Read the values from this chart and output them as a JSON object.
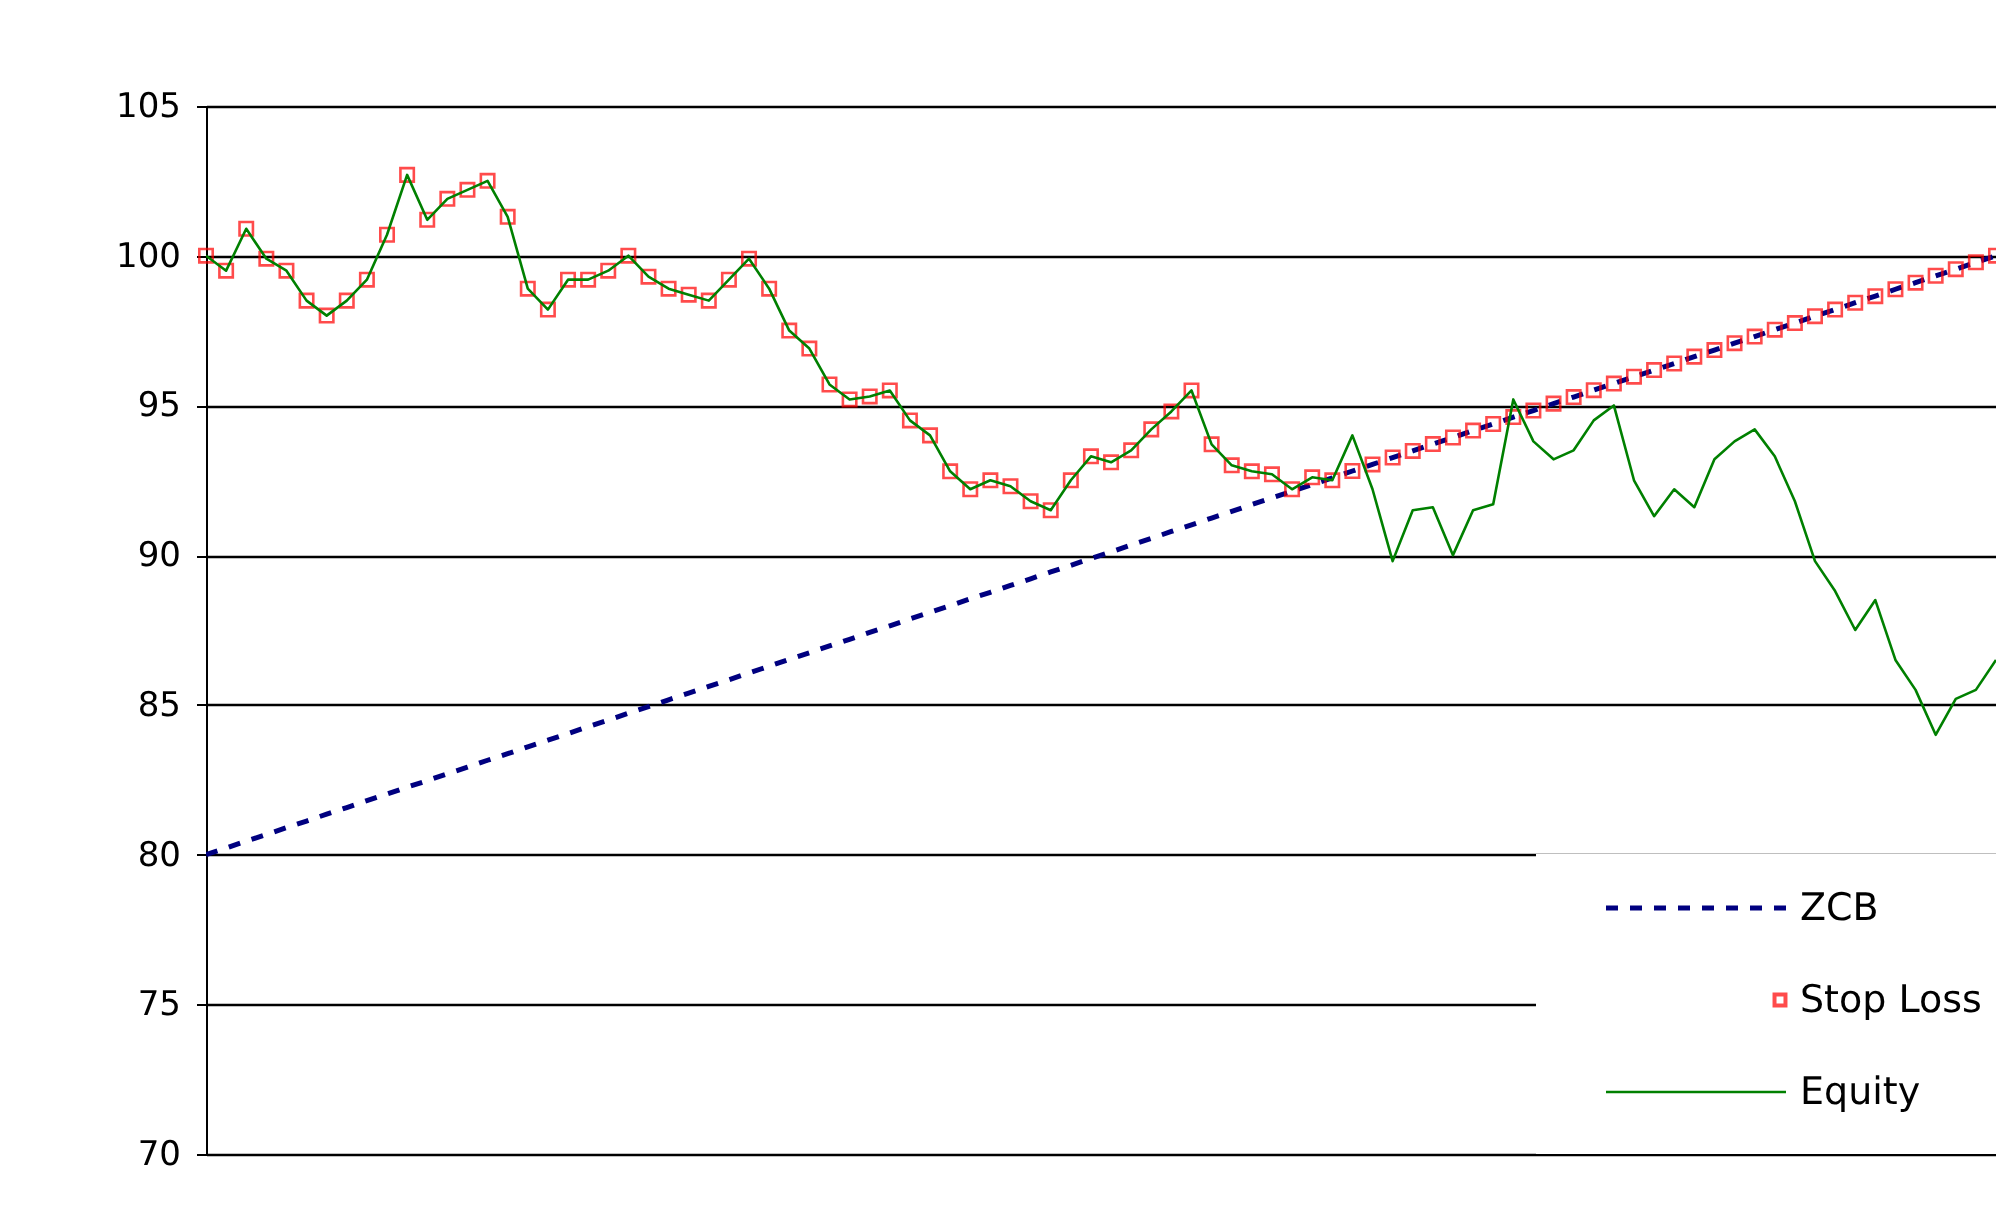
{
  "chart_data": {
    "type": "line",
    "categories": [
      null,
      null,
      null,
      null,
      null,
      null,
      null,
      null,
      null,
      null,
      null,
      null,
      null,
      null,
      null,
      null,
      null,
      null,
      null,
      null,
      null,
      null,
      null,
      null,
      null,
      null,
      null,
      null,
      null,
      null,
      null,
      null,
      null,
      null,
      null,
      null,
      null,
      null,
      null,
      null,
      null,
      null,
      null,
      null,
      null,
      null,
      null,
      null,
      null,
      null,
      null,
      null,
      null,
      null,
      null,
      null,
      null,
      null,
      null,
      null,
      null,
      null,
      null,
      null,
      null,
      null,
      null,
      null,
      null,
      null,
      null,
      null,
      null,
      null,
      null,
      null,
      null,
      null,
      null,
      null,
      null,
      null,
      null,
      null,
      null,
      null,
      null,
      null,
      null,
      null
    ],
    "series": [
      {
        "name": "ZCB",
        "type": "line",
        "line_style": "dashed",
        "marker": "none",
        "color": "#000080",
        "values": [
          80,
          80.22,
          80.45,
          80.67,
          80.9,
          81.12,
          81.35,
          81.57,
          81.8,
          82.02,
          82.25,
          82.47,
          82.7,
          82.92,
          83.15,
          83.37,
          83.6,
          83.82,
          84.04,
          84.27,
          84.49,
          84.72,
          84.94,
          85.17,
          85.39,
          85.62,
          85.84,
          86.07,
          86.29,
          86.52,
          86.74,
          86.97,
          87.19,
          87.42,
          87.64,
          87.87,
          88.09,
          88.31,
          88.54,
          88.76,
          88.99,
          89.21,
          89.44,
          89.66,
          89.89,
          90.11,
          90.34,
          90.56,
          90.79,
          91.01,
          91.24,
          91.46,
          91.69,
          91.91,
          92.13,
          92.36,
          92.58,
          92.81,
          93.03,
          93.26,
          93.48,
          93.71,
          93.93,
          94.16,
          94.38,
          94.61,
          94.83,
          95.06,
          95.28,
          95.51,
          95.73,
          95.96,
          96.18,
          96.4,
          96.63,
          96.85,
          97.08,
          97.3,
          97.53,
          97.75,
          97.98,
          98.2,
          98.43,
          98.65,
          98.88,
          99.1,
          99.33,
          99.55,
          99.78,
          100
        ]
      },
      {
        "name": "Stop Loss",
        "type": "scatter",
        "marker": "square",
        "color": "#ff0000",
        "values": [
          100.0,
          99.5,
          100.9,
          99.9,
          99.5,
          98.5,
          98.0,
          98.5,
          99.2,
          100.7,
          102.7,
          101.2,
          101.9,
          102.2,
          102.5,
          101.3,
          98.9,
          98.2,
          99.2,
          99.2,
          99.5,
          100.0,
          99.3,
          98.9,
          98.7,
          98.5,
          99.2,
          99.9,
          98.9,
          97.5,
          96.9,
          95.7,
          95.2,
          95.3,
          95.5,
          94.5,
          94.0,
          92.8,
          92.2,
          92.5,
          92.3,
          91.8,
          91.5,
          92.5,
          93.3,
          93.1,
          93.5,
          94.2,
          94.8,
          95.5,
          93.7,
          93.0,
          92.8,
          92.7,
          92.2,
          92.6,
          92.5,
          92.81,
          93.03,
          93.26,
          93.48,
          93.71,
          93.93,
          94.16,
          94.38,
          94.61,
          94.83,
          95.06,
          95.28,
          95.51,
          95.73,
          95.96,
          96.18,
          96.4,
          96.63,
          96.85,
          97.08,
          97.3,
          97.53,
          97.75,
          97.98,
          98.2,
          98.43,
          98.65,
          98.88,
          99.1,
          99.33,
          99.55,
          99.78,
          100
        ]
      },
      {
        "name": "Equity",
        "type": "line",
        "line_style": "solid",
        "marker": "none",
        "color": "#008000",
        "values": [
          100.0,
          99.5,
          100.9,
          99.9,
          99.5,
          98.5,
          98.0,
          98.5,
          99.2,
          100.7,
          102.7,
          101.2,
          101.9,
          102.2,
          102.5,
          101.3,
          98.9,
          98.2,
          99.2,
          99.2,
          99.5,
          100.0,
          99.3,
          98.9,
          98.7,
          98.5,
          99.2,
          99.9,
          98.9,
          97.5,
          96.9,
          95.7,
          95.2,
          95.3,
          95.5,
          94.5,
          94.0,
          92.8,
          92.2,
          92.5,
          92.3,
          91.8,
          91.5,
          92.5,
          93.3,
          93.1,
          93.5,
          94.2,
          94.8,
          95.5,
          93.7,
          93.0,
          92.8,
          92.7,
          92.2,
          92.6,
          92.5,
          94.0,
          92.2,
          89.8,
          91.5,
          91.6,
          90.0,
          91.5,
          91.7,
          95.2,
          93.8,
          93.2,
          93.5,
          94.5,
          95.0,
          92.5,
          91.3,
          92.2,
          91.6,
          93.2,
          93.8,
          94.2,
          93.3,
          91.8,
          89.8,
          88.8,
          87.5,
          88.5,
          86.5,
          85.5,
          84.0,
          85.2,
          85.5,
          86.5
        ]
      }
    ],
    "ylim": [
      70,
      105
    ],
    "yticks": [
      70,
      75,
      80,
      85,
      90,
      95,
      100,
      105
    ],
    "grid": "y",
    "legend": "bottom right",
    "tick_labels": "y"
  }
}
